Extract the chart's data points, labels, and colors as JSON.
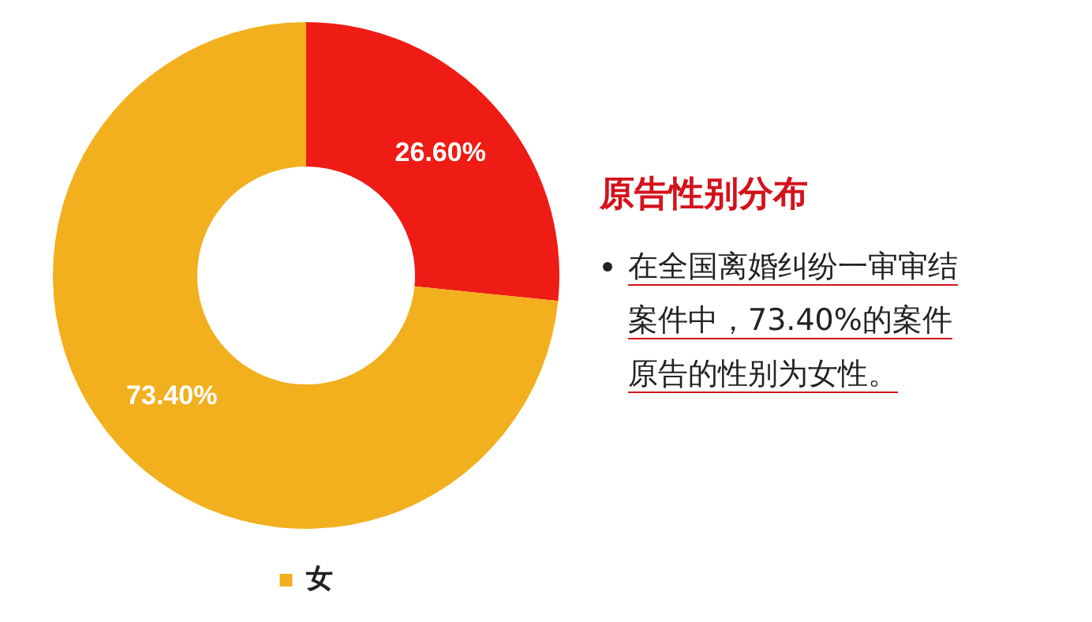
{
  "chart_data": {
    "type": "donut",
    "title": "原告性别分布",
    "categories": [
      null,
      "女"
    ],
    "values": [
      26.6,
      73.4
    ],
    "colors": [
      "#ee1c14",
      "#f2b01e"
    ],
    "value_labels": [
      "26.60%",
      "73.40%"
    ],
    "legend": "bottom",
    "annotations": [
      "在全国离婚纠纷一审审结案件中，73.40%的案件原告的性别为女性。"
    ]
  }
}
